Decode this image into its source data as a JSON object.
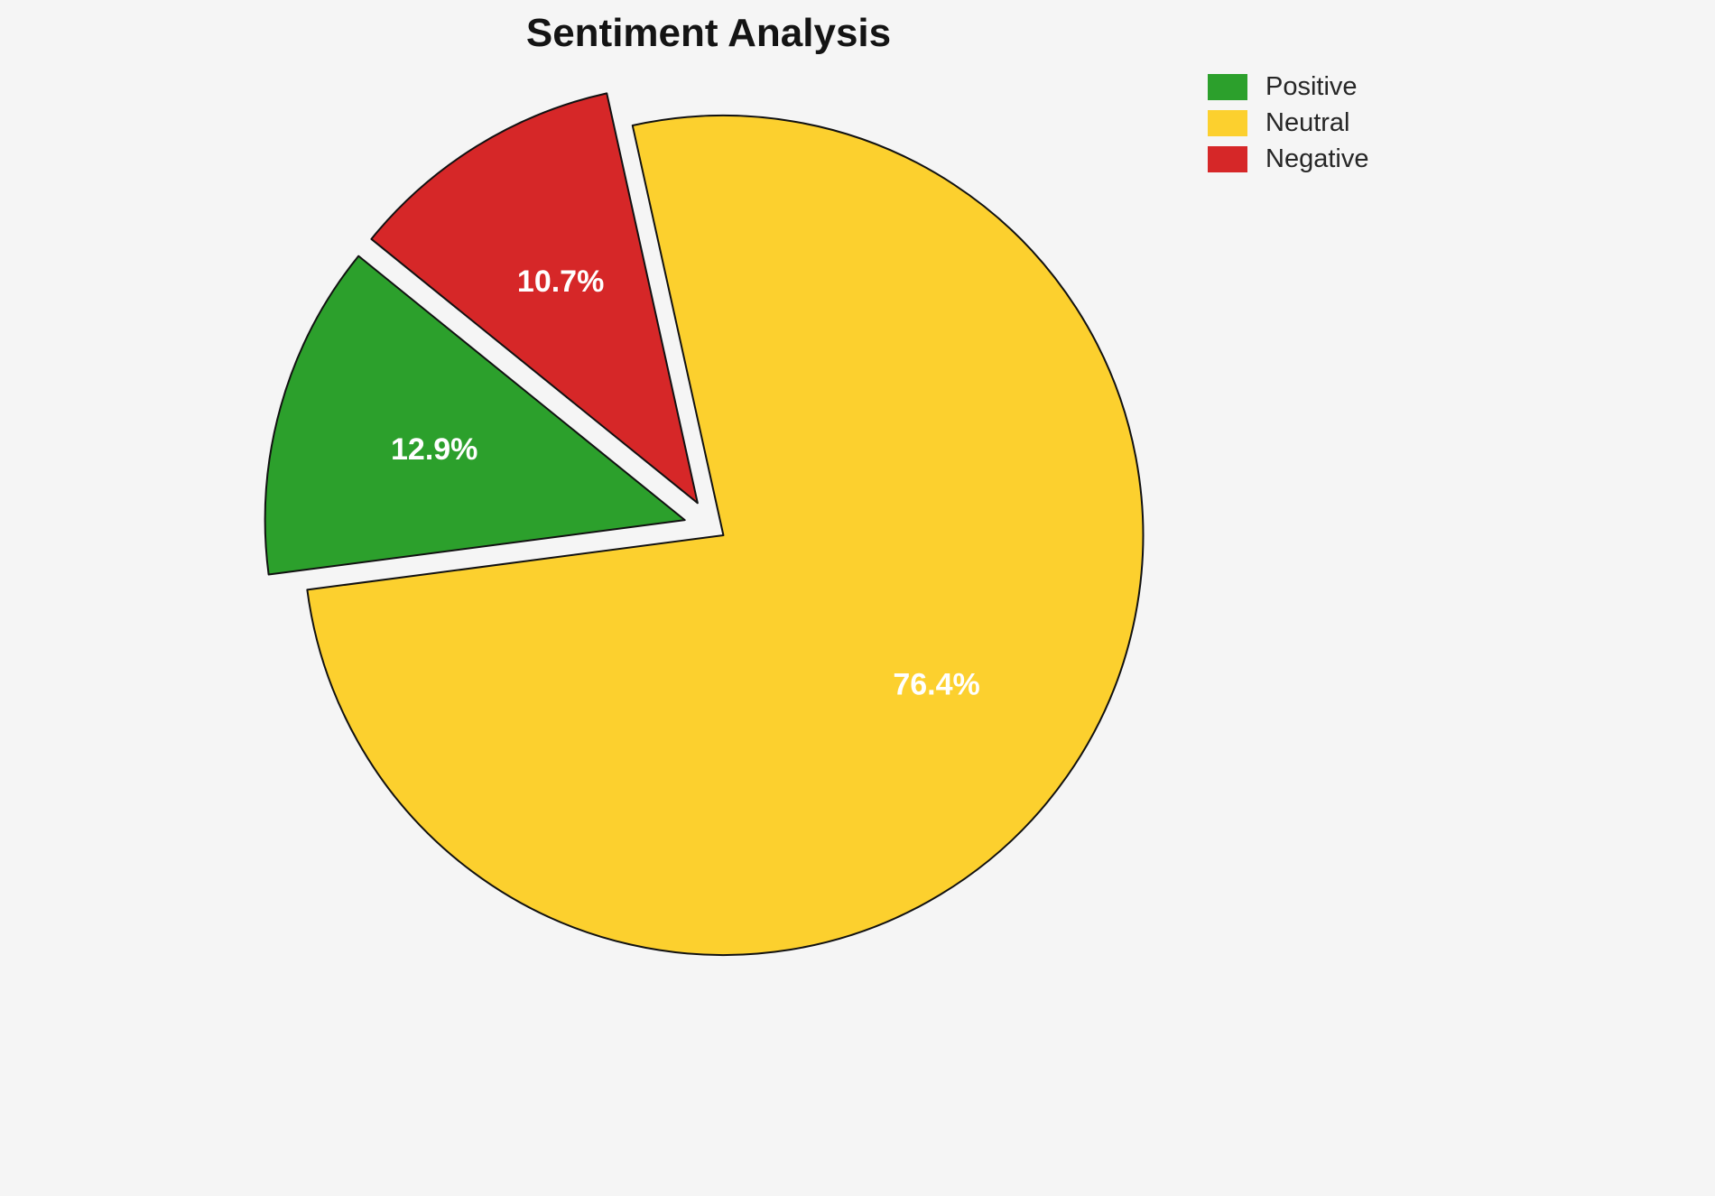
{
  "page": {
    "background": "#f5f5f5"
  },
  "chart_data": {
    "type": "pie",
    "title": "Sentiment Analysis",
    "slices": [
      {
        "label": "Positive",
        "value": 12.9,
        "display": "12.9%",
        "color": "#2ca02c",
        "explode": 0.07
      },
      {
        "label": "Neutral",
        "value": 76.4,
        "display": "76.4%",
        "color": "#fcd02e",
        "explode": 0.03
      },
      {
        "label": "Negative",
        "value": 10.7,
        "display": "10.7%",
        "color": "#d62728",
        "explode": 0.07
      }
    ],
    "legend": {
      "position": "upper right",
      "labels": [
        "Positive",
        "Neutral",
        "Negative"
      ]
    },
    "layout": {
      "startangle": 102.5,
      "clockwise": true,
      "draw_order": [
        1,
        0,
        2
      ],
      "center": [
        790,
        585
      ],
      "radius": 465,
      "label_distance": 0.62,
      "edge_color": "#111111",
      "edge_width": 2,
      "pct_color": "#ffffff"
    }
  }
}
